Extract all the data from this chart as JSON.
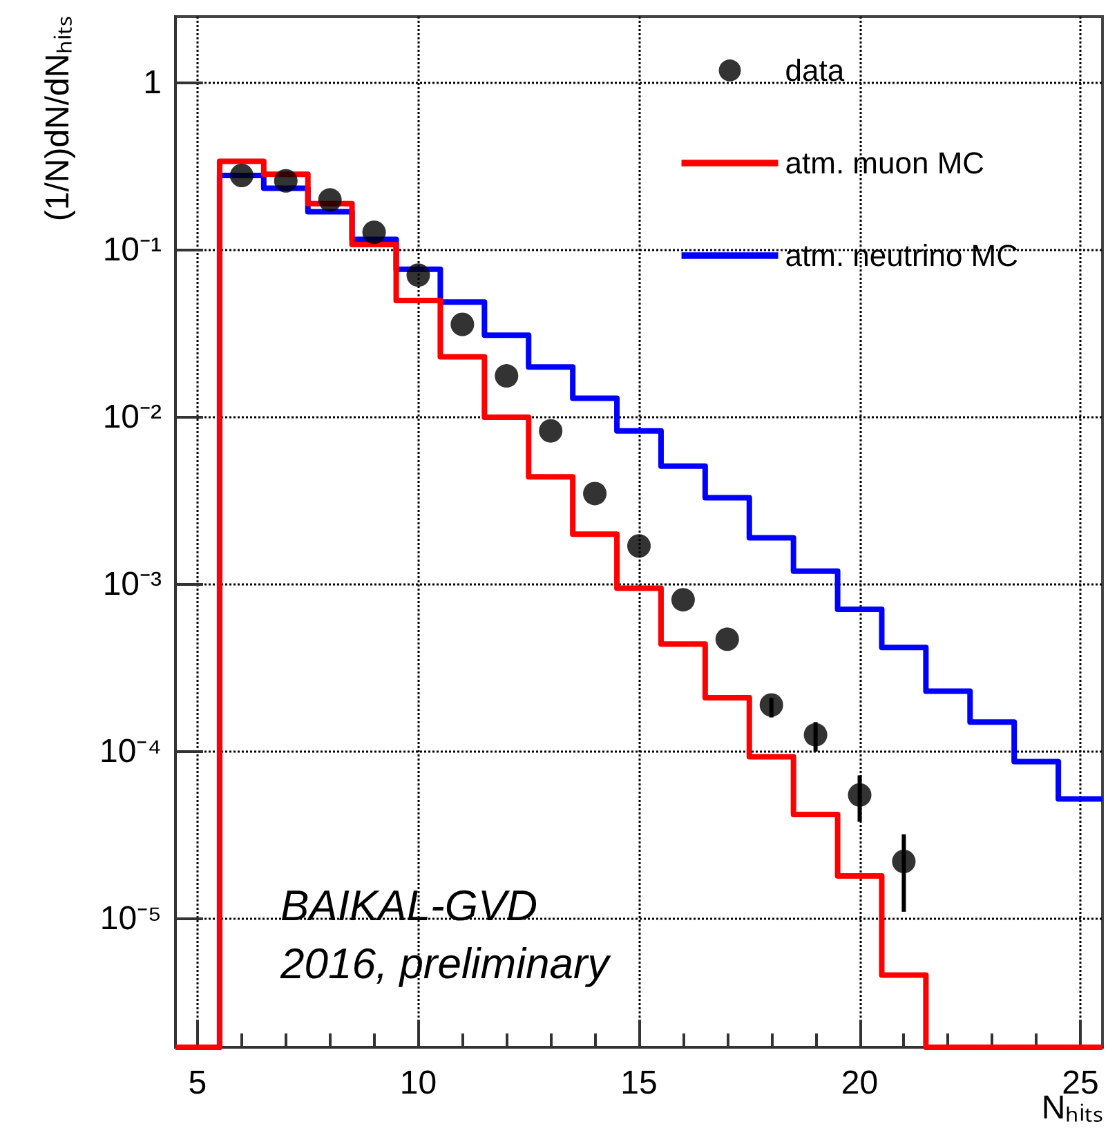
{
  "chart_data": {
    "type": "histogram",
    "xlabel": "Nₕᵢₜₛ",
    "ylabel": "(1/N)dN/dNₕᵢₜₛ",
    "bins": [
      4.5,
      5.5,
      6.5,
      7.5,
      8.5,
      9.5,
      10.5,
      11.5,
      12.5,
      13.5,
      14.5,
      15.5,
      16.5,
      17.5,
      18.5,
      19.5,
      20.5,
      21.5,
      22.5,
      23.5,
      24.5,
      25.5
    ],
    "series": [
      {
        "name": "data",
        "type": "scatter",
        "color": "#000000",
        "marker": "circle",
        "x": [
          6,
          7,
          8,
          9,
          10,
          11,
          12,
          13,
          14,
          15,
          16,
          17,
          18,
          19,
          20,
          21
        ],
        "values": [
          0.28,
          0.26,
          0.2,
          0.128,
          0.071,
          0.036,
          0.0177,
          0.0083,
          0.0035,
          0.0017,
          0.00081,
          0.00047,
          0.00019,
          0.000126,
          5.5e-05,
          2.2e-05
        ],
        "errors": [
          null,
          null,
          null,
          null,
          null,
          null,
          null,
          null,
          null,
          null,
          null,
          null,
          [
            0.00016,
            0.00021
          ],
          [
            0.0001,
            0.00015
          ],
          [
            3.8e-05,
            7.2e-05
          ],
          [
            1.1e-05,
            3.2e-05
          ]
        ]
      },
      {
        "name": "atm. muon MC",
        "color": "#ff0000",
        "values": [
          null,
          0.34,
          0.285,
          0.19,
          0.108,
          0.05,
          0.023,
          0.01,
          0.0044,
          0.002,
          0.00095,
          0.00044,
          0.00021,
          9.3e-05,
          4.2e-05,
          1.8e-05,
          4.6e-06,
          null,
          null,
          null,
          null
        ]
      },
      {
        "name": "atm. neutrino MC",
        "color": "#0000ff",
        "values": [
          null,
          0.28,
          0.235,
          0.17,
          0.116,
          0.077,
          0.049,
          0.031,
          0.02,
          0.013,
          0.0083,
          0.0051,
          0.0033,
          0.0019,
          0.0012,
          0.00071,
          0.00042,
          0.00023,
          0.00015,
          8.7e-05,
          5.2e-05
        ]
      }
    ],
    "xlim": [
      4.5,
      25.5
    ],
    "xticks": [
      5,
      10,
      15,
      20,
      25
    ],
    "ylim": [
      1.7e-06,
      2.5
    ],
    "yticks": [
      {
        "value": 1e-05,
        "label": "10⁻⁵"
      },
      {
        "value": 0.0001,
        "label": "10⁻⁴"
      },
      {
        "value": 0.001,
        "label": "10⁻³"
      },
      {
        "value": 0.01,
        "label": "10⁻²"
      },
      {
        "value": 0.1,
        "label": "10⁻¹"
      },
      1
    ],
    "log": "y",
    "grid": true,
    "legend": "top right",
    "line_style": "solid",
    "annotations": [
      "BAIKAL-GVD",
      "2016, preliminary"
    ]
  }
}
